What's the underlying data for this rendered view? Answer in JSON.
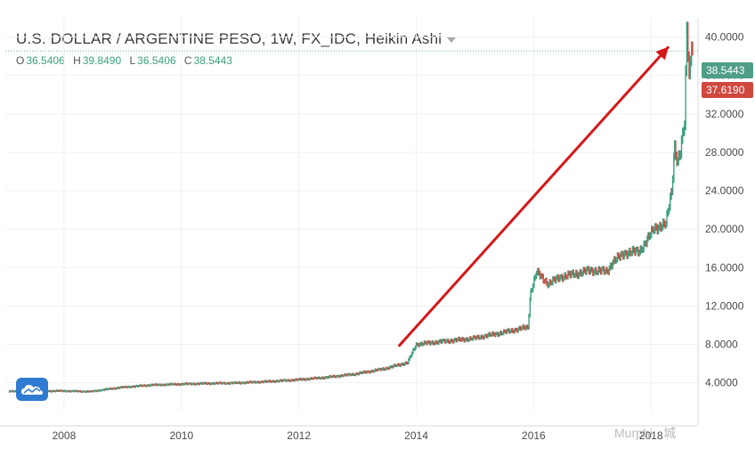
{
  "header": {
    "title": "U.S. DOLLAR / ARGENTINE PESO, 1W, FX_IDC, Heikin Ashi",
    "ohlc": [
      {
        "key": "O",
        "value": "36.5406"
      },
      {
        "key": "H",
        "value": "39.8490"
      },
      {
        "key": "L",
        "value": "36.5406"
      },
      {
        "key": "C",
        "value": "38.5443"
      }
    ]
  },
  "price_tags": {
    "close": "38.5443",
    "prev": "37.6190"
  },
  "watermark": "Murphi · 城",
  "colors": {
    "up": "#3aa17e",
    "down": "#d0473e",
    "arrow": "#d4181a",
    "axis_text": "#4a4a4a",
    "grid": "#eef1f4",
    "logo": "#2f7bd1"
  },
  "chart_data": {
    "type": "line",
    "title": "U.S. DOLLAR / ARGENTINE PESO, 1W, FX_IDC, Heikin Ashi",
    "xlabel": "",
    "ylabel": "",
    "x_ticks": [
      "2008",
      "2010",
      "2012",
      "2014",
      "2016",
      "2018"
    ],
    "y_ticks": [
      "4.0000",
      "8.0000",
      "12.0000",
      "16.0000",
      "20.0000",
      "24.0000",
      "28.0000",
      "32.0000",
      "36.0000",
      "40.0000"
    ],
    "xlim": [
      2007.05,
      2018.85
    ],
    "ylim": [
      1.0,
      42.0
    ],
    "grid": true,
    "series": [
      {
        "values": [
          [
            2007.1,
            3.1
          ],
          [
            2007.5,
            3.12
          ],
          [
            2008.0,
            3.15
          ],
          [
            2008.5,
            3.08
          ],
          [
            2008.75,
            3.3
          ],
          [
            2009.0,
            3.5
          ],
          [
            2009.5,
            3.75
          ],
          [
            2010.0,
            3.85
          ],
          [
            2010.5,
            3.93
          ],
          [
            2011.0,
            3.98
          ],
          [
            2011.5,
            4.12
          ],
          [
            2012.0,
            4.3
          ],
          [
            2012.5,
            4.55
          ],
          [
            2013.0,
            4.9
          ],
          [
            2013.5,
            5.45
          ],
          [
            2013.9,
            6.1
          ],
          [
            2014.05,
            8.0
          ],
          [
            2014.5,
            8.3
          ],
          [
            2015.0,
            8.6
          ],
          [
            2015.5,
            9.2
          ],
          [
            2015.95,
            9.8
          ],
          [
            2016.0,
            13.5
          ],
          [
            2016.1,
            15.5
          ],
          [
            2016.3,
            14.3
          ],
          [
            2016.5,
            15.0
          ],
          [
            2016.8,
            15.4
          ],
          [
            2017.0,
            15.7
          ],
          [
            2017.3,
            15.6
          ],
          [
            2017.4,
            16.6
          ],
          [
            2017.6,
            17.5
          ],
          [
            2017.85,
            17.7
          ],
          [
            2018.0,
            19.0
          ],
          [
            2018.1,
            20.1
          ],
          [
            2018.3,
            20.5
          ],
          [
            2018.4,
            24.0
          ],
          [
            2018.45,
            28.6
          ],
          [
            2018.5,
            27.0
          ],
          [
            2018.55,
            28.0
          ],
          [
            2018.62,
            31.0
          ],
          [
            2018.64,
            36.0
          ],
          [
            2018.66,
            41.2
          ],
          [
            2018.7,
            36.0
          ],
          [
            2018.72,
            37.6
          ],
          [
            2018.74,
            39.8
          ],
          [
            2018.76,
            38.54
          ]
        ]
      }
    ],
    "annotations": [
      {
        "type": "arrow",
        "from": [
          2013.75,
          7.8
        ],
        "to": [
          2018.35,
          39.0
        ]
      }
    ],
    "last_close": 38.5443,
    "prev_close": 37.619
  }
}
